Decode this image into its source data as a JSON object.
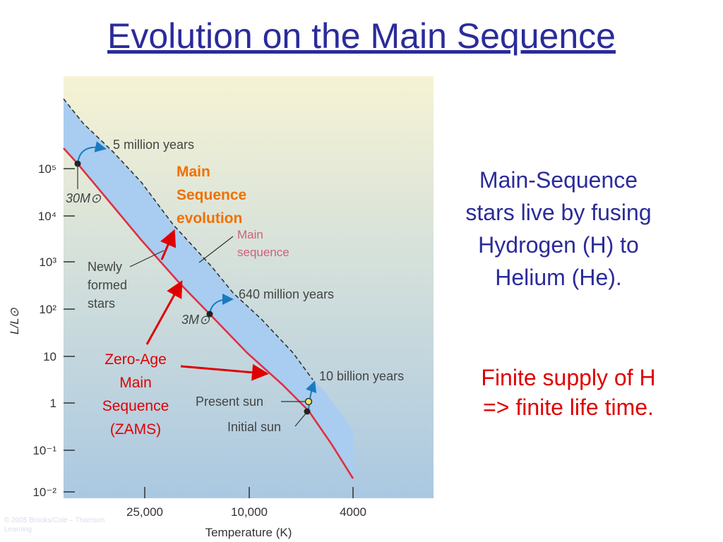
{
  "slide": {
    "title": "Evolution on the Main Sequence",
    "side_text_lines": [
      "Main-Sequence",
      "stars live by fusing",
      "Hydrogen (H) to",
      "Helium (He)."
    ],
    "finite_lines": [
      "Finite supply of H",
      "=> finite life time."
    ]
  },
  "diagram": {
    "y_axis_label": "L/L⊙",
    "x_axis_label": "Temperature (K)",
    "y_ticks": [
      "10⁵",
      "10⁴",
      "10³",
      "10²",
      "10",
      "1",
      "10⁻¹",
      "10⁻²"
    ],
    "x_ticks": [
      "25,000",
      "10,000",
      "4000"
    ],
    "ages": {
      "five_million": "5 million years",
      "six_forty_million": "640 million years",
      "ten_billion": "10 billion years"
    },
    "masses": {
      "thirty": "30M⊙",
      "three": "3M⊙"
    },
    "labels": {
      "newly_formed": [
        "Newly",
        "formed",
        "stars"
      ],
      "main_sequence": [
        "Main",
        "sequence"
      ],
      "present_sun": "Present sun",
      "initial_sun": "Initial sun",
      "ms_evolution": [
        "Main",
        "Sequence",
        "evolution"
      ],
      "zams": [
        "Zero-Age",
        "Main",
        "Sequence",
        "(ZAMS)"
      ]
    },
    "colors": {
      "band": "#a8cdf0",
      "zams_line": "#e03040",
      "red_arrow": "#e00000",
      "blue_arrow": "#1a7ac0",
      "orange_text": "#f07000",
      "bg_top": "#f6f3d4",
      "bg_bottom": "#aac8e2"
    },
    "credit": [
      "© 2005 Brooks/Cole – Thomson",
      "Learning"
    ]
  }
}
